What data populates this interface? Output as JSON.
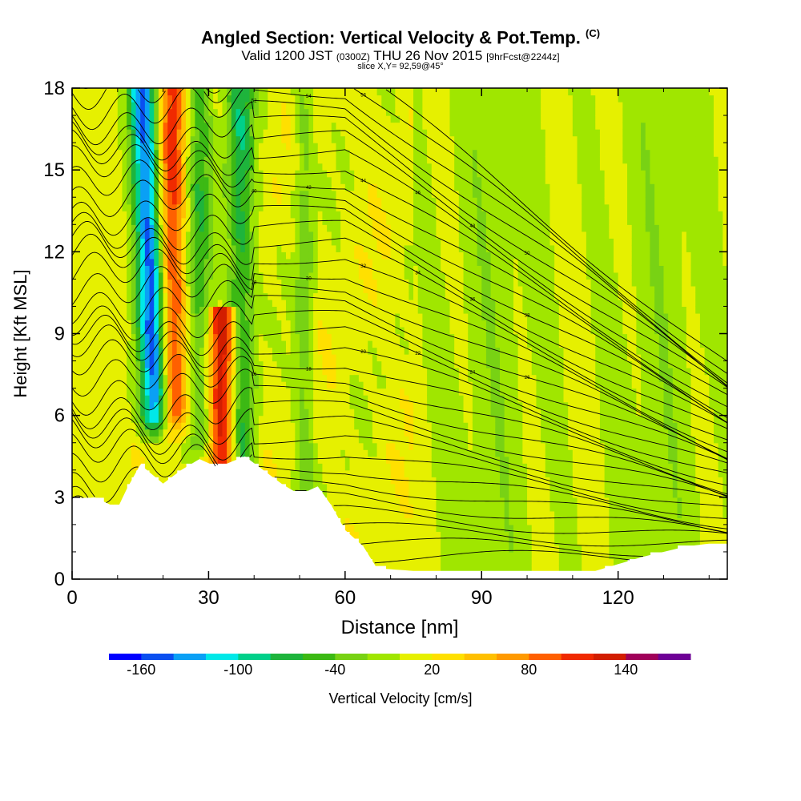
{
  "title": {
    "main": "Angled Section: Vertical Velocity & Pot.Temp.",
    "main_tag": "(C)",
    "valid": "Valid 1200 JST",
    "valid_z": "(0300Z)",
    "date": "THU 26 Nov 2015",
    "fcst": "[9hrFcst@2244z]",
    "slice": "slice X,Y= 92,59@45°"
  },
  "chart_data": {
    "type": "heatmap",
    "xlabel": "Distance [nm]",
    "ylabel": "Height [Kft MSL]",
    "xlim": [
      0,
      144
    ],
    "ylim": [
      0,
      18
    ],
    "xticks": [
      "0",
      "30",
      "60",
      "90",
      "120"
    ],
    "yticks": [
      "0",
      "3",
      "6",
      "9",
      "12",
      "15",
      "18"
    ],
    "colorbar": {
      "label": "Vertical Velocity [cm/s]",
      "tick_labels": [
        "-160",
        "-100",
        "-40",
        "20",
        "80",
        "140"
      ],
      "levels": [
        -160,
        -140,
        -120,
        -100,
        -80,
        -60,
        -40,
        -20,
        0,
        20,
        40,
        60,
        80,
        100,
        120,
        140,
        160
      ],
      "colors": [
        "#0000ff",
        "#0a4ff0",
        "#0aa0f5",
        "#00e8e8",
        "#00d08a",
        "#1eb43c",
        "#3cb914",
        "#78d214",
        "#a0e600",
        "#e6f000",
        "#ffe000",
        "#ffc000",
        "#ff9a00",
        "#ff6000",
        "#f02a00",
        "#d21e00",
        "#a0005a",
        "#6e0096"
      ]
    },
    "features": [
      {
        "kind": "downdraft",
        "x": 17,
        "y_from": 6,
        "y_to": 18,
        "w_min": -160
      },
      {
        "kind": "updraft",
        "x": 22,
        "y_from": 6,
        "y_to": 18,
        "w_max": 100
      },
      {
        "kind": "downdraft",
        "x": 28,
        "y_from": 5,
        "y_to": 18,
        "w_min": -60
      },
      {
        "kind": "updraft",
        "x": 33,
        "y_from": 4,
        "y_to": 10,
        "w_max": 140
      },
      {
        "kind": "downdraft",
        "x": 37,
        "y_from": 4,
        "y_to": 18,
        "w_min": -80
      },
      {
        "kind": "downdraft",
        "x": 51,
        "y_from": 3,
        "y_to": 18,
        "w_min": -40
      }
    ],
    "terrain_kft": [
      [
        0,
        2.9
      ],
      [
        5,
        3.0
      ],
      [
        10,
        2.6
      ],
      [
        12,
        3.3
      ],
      [
        15,
        4.2
      ],
      [
        20,
        3.5
      ],
      [
        24,
        4.0
      ],
      [
        28,
        4.4
      ],
      [
        32,
        4.1
      ],
      [
        35,
        4.3
      ],
      [
        38,
        4.5
      ],
      [
        42,
        4.0
      ],
      [
        46,
        3.5
      ],
      [
        50,
        3.1
      ],
      [
        54,
        3.4
      ],
      [
        57,
        2.7
      ],
      [
        60,
        1.8
      ],
      [
        64,
        1.2
      ],
      [
        67,
        0.4
      ],
      [
        75,
        0.3
      ],
      [
        90,
        0.3
      ],
      [
        105,
        0.3
      ],
      [
        115,
        0.3
      ],
      [
        125,
        0.8
      ],
      [
        135,
        1.2
      ],
      [
        140,
        1.3
      ],
      [
        144,
        1.3
      ]
    ],
    "theta_contours": {
      "levels": [
        -8,
        -6,
        -4,
        -2,
        0,
        2,
        4,
        6,
        8,
        10,
        12,
        14,
        16,
        18,
        20,
        22,
        24,
        26,
        28,
        30,
        32,
        34,
        36,
        38,
        40,
        42,
        44,
        46,
        48,
        50,
        52,
        54,
        56,
        58
      ],
      "labeled": [
        "16",
        "18",
        "20",
        "22",
        "24",
        "26",
        "28",
        "30",
        "32",
        "34",
        "36",
        "38",
        "40",
        "42",
        "44",
        "46",
        "48",
        "50",
        "52",
        "54",
        "56"
      ]
    }
  }
}
